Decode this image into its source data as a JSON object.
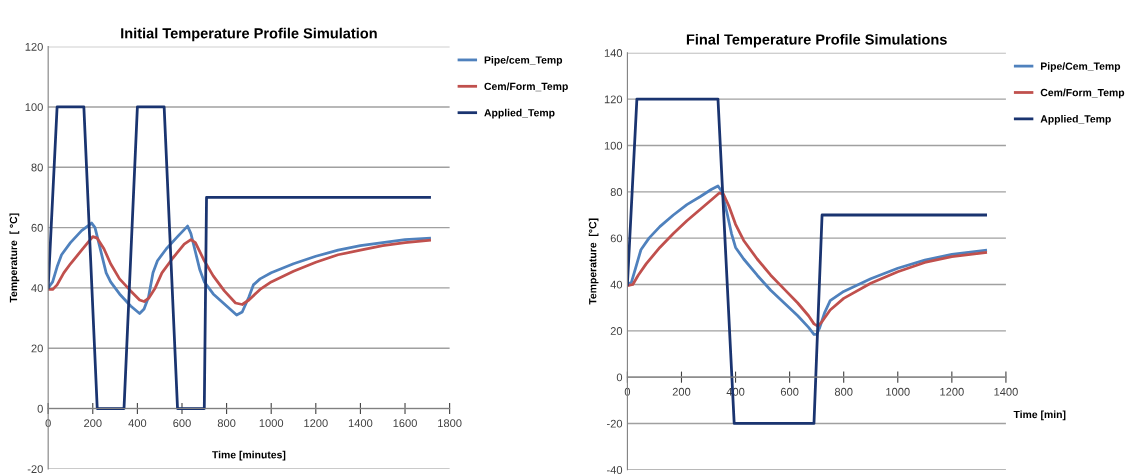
{
  "chart_data": [
    {
      "type": "line",
      "title": "Initial Temperature Profile Simulation",
      "xlabel": "Time [minutes]",
      "ylabel": "Temperature  [ °C]",
      "xlim": [
        0,
        1800
      ],
      "xticks": [
        0,
        200,
        400,
        600,
        800,
        1000,
        1200,
        1400,
        1600,
        1800
      ],
      "ylim": [
        -20,
        120
      ],
      "yticks": [
        -20,
        0,
        20,
        40,
        60,
        80,
        100,
        120
      ],
      "grid": "y",
      "legend": "top right",
      "marker": "none",
      "line_style": "solid",
      "series": [
        {
          "name": "Pipe/cem_Temp",
          "color": "#4f81bd",
          "x": [
            0,
            20,
            40,
            60,
            100,
            150,
            195,
            210,
            230,
            260,
            280,
            320,
            370,
            410,
            430,
            450,
            470,
            490,
            530,
            580,
            625,
            640,
            660,
            680,
            700,
            740,
            800,
            845,
            870,
            900,
            920,
            950,
            1000,
            1100,
            1200,
            1300,
            1400,
            1500,
            1600,
            1710
          ],
          "values": [
            40,
            42,
            47,
            51,
            55,
            59,
            61.5,
            60,
            54,
            45,
            42,
            38,
            34,
            31.5,
            33,
            37,
            45,
            49,
            53,
            57,
            60.5,
            58,
            52,
            46,
            42,
            38,
            34,
            31,
            32,
            37,
            41,
            43,
            45,
            48,
            50.5,
            52.5,
            54,
            55,
            56,
            56.5
          ]
        },
        {
          "name": "Cem/Form_Temp",
          "color": "#c0504d",
          "x": [
            0,
            20,
            40,
            70,
            100,
            150,
            200,
            220,
            250,
            280,
            320,
            370,
            410,
            430,
            450,
            480,
            510,
            560,
            610,
            640,
            660,
            700,
            740,
            790,
            840,
            870,
            900,
            950,
            1000,
            1100,
            1200,
            1300,
            1400,
            1500,
            1600,
            1710
          ],
          "values": [
            39.5,
            39.5,
            41,
            45,
            48,
            52.5,
            57,
            56.5,
            53,
            48,
            43,
            39,
            36,
            35.5,
            36.5,
            40,
            45,
            50,
            54.5,
            56,
            55,
            49,
            44,
            39,
            35,
            34.5,
            36,
            39.5,
            42,
            45.5,
            48.5,
            51,
            52.5,
            54,
            55,
            55.8
          ]
        },
        {
          "name": "Applied_Temp",
          "color": "#1a3470",
          "x": [
            0,
            40,
            160,
            220,
            340,
            400,
            520,
            580,
            700,
            710,
            1710
          ],
          "values": [
            40,
            100,
            100,
            0,
            0,
            100,
            100,
            0,
            0,
            70,
            70
          ]
        }
      ]
    },
    {
      "type": "line",
      "title": "Final Temperature Profile Simulations",
      "xlabel": "Time [min]",
      "ylabel": "Temperature  [°C]",
      "xlim": [
        0,
        1400
      ],
      "xticks": [
        0,
        200,
        400,
        600,
        800,
        1000,
        1200,
        1400
      ],
      "ylim": [
        -40,
        140
      ],
      "yticks": [
        -40,
        -20,
        0,
        20,
        40,
        60,
        80,
        100,
        120,
        140
      ],
      "grid": "y",
      "legend": "top right",
      "marker": "none",
      "line_style": "solid",
      "series": [
        {
          "name": "Pipe/Cem_Temp",
          "color": "#4f81bd",
          "x": [
            0,
            15,
            30,
            50,
            80,
            120,
            170,
            220,
            270,
            310,
            335,
            350,
            370,
            385,
            400,
            430,
            480,
            530,
            580,
            630,
            670,
            690,
            700,
            710,
            730,
            750,
            800,
            900,
            1000,
            1100,
            1200,
            1325
          ],
          "values": [
            40,
            41,
            47,
            55,
            60,
            65,
            70,
            74.5,
            78,
            81,
            82.5,
            80,
            70,
            62,
            56,
            51,
            44,
            37.5,
            32,
            26.5,
            21.5,
            18.5,
            18.5,
            21,
            28,
            33,
            37,
            42.5,
            47,
            50.5,
            53,
            54.8
          ]
        },
        {
          "name": "Cem/Form_Temp",
          "color": "#c0504d",
          "x": [
            0,
            20,
            40,
            70,
            120,
            170,
            220,
            270,
            310,
            340,
            355,
            375,
            400,
            430,
            480,
            530,
            580,
            630,
            670,
            690,
            705,
            720,
            750,
            800,
            900,
            1000,
            1100,
            1200,
            1325
          ],
          "values": [
            39.5,
            40,
            44,
            49,
            56,
            62,
            67.5,
            72.5,
            76.5,
            79.5,
            79,
            74,
            66,
            59,
            51,
            44,
            38,
            32,
            26.5,
            23,
            22,
            24,
            29,
            34,
            40.5,
            45.5,
            49.5,
            52,
            53.8
          ]
        },
        {
          "name": "Applied_Temp",
          "color": "#1a3470",
          "x": [
            0,
            35,
            335,
            395,
            690,
            720,
            1325
          ],
          "values": [
            40,
            120,
            120,
            -20,
            -20,
            70,
            70
          ]
        }
      ]
    }
  ]
}
